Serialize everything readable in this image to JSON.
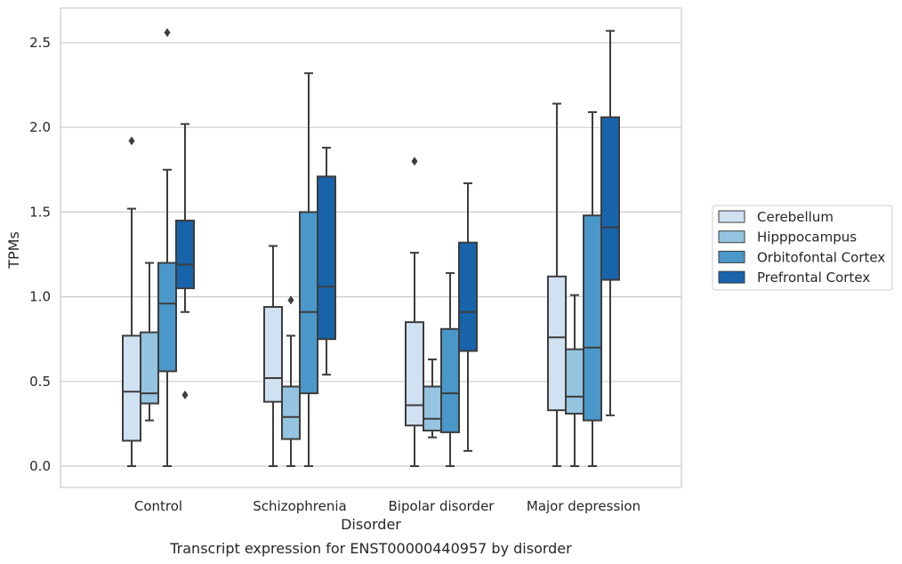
{
  "chart_data": {
    "type": "box",
    "xlabel": "Disorder",
    "ylabel": "TPMs",
    "caption": "Transcript expression for ENST00000440957 by disorder",
    "categories": [
      "Control",
      "Schizophrenia",
      "Bipolar disorder",
      "Major depression"
    ],
    "ylim": [
      -0.12,
      2.7
    ],
    "yticks": [
      "0.0",
      "0.5",
      "1.0",
      "1.5",
      "2.0",
      "2.5"
    ],
    "ytick_values": [
      0.0,
      0.5,
      1.0,
      1.5,
      2.0,
      2.5
    ],
    "grid": "horizontal",
    "legend_position": "right",
    "series": [
      {
        "name": "Cerebellum",
        "color": "#d0e1f2",
        "boxes": [
          {
            "whislo": 0.0,
            "q1": 0.15,
            "med": 0.44,
            "q3": 0.77,
            "whishi": 1.52,
            "fliers": [
              1.92
            ]
          },
          {
            "whislo": 0.0,
            "q1": 0.38,
            "med": 0.52,
            "q3": 0.94,
            "whishi": 1.3,
            "fliers": []
          },
          {
            "whislo": 0.0,
            "q1": 0.24,
            "med": 0.36,
            "q3": 0.85,
            "whishi": 1.26,
            "fliers": [
              1.8
            ]
          },
          {
            "whislo": 0.0,
            "q1": 0.33,
            "med": 0.76,
            "q3": 1.12,
            "whishi": 2.14,
            "fliers": []
          }
        ]
      },
      {
        "name": "Hipppocampus",
        "color": "#94c4df",
        "boxes": [
          {
            "whislo": 0.27,
            "q1": 0.37,
            "med": 0.43,
            "q3": 0.79,
            "whishi": 1.2,
            "fliers": []
          },
          {
            "whislo": 0.0,
            "q1": 0.16,
            "med": 0.29,
            "q3": 0.47,
            "whishi": 0.77,
            "fliers": [
              0.98
            ]
          },
          {
            "whislo": 0.17,
            "q1": 0.21,
            "med": 0.28,
            "q3": 0.47,
            "whishi": 0.63,
            "fliers": []
          },
          {
            "whislo": 0.0,
            "q1": 0.31,
            "med": 0.41,
            "q3": 0.69,
            "whishi": 1.01,
            "fliers": []
          }
        ]
      },
      {
        "name": "Orbitofontal Cortex",
        "color": "#4a98c9",
        "boxes": [
          {
            "whislo": 0.0,
            "q1": 0.56,
            "med": 0.96,
            "q3": 1.2,
            "whishi": 1.75,
            "fliers": [
              2.56
            ]
          },
          {
            "whislo": 0.0,
            "q1": 0.43,
            "med": 0.91,
            "q3": 1.5,
            "whishi": 2.32,
            "fliers": []
          },
          {
            "whislo": 0.0,
            "q1": 0.2,
            "med": 0.43,
            "q3": 0.81,
            "whishi": 1.14,
            "fliers": []
          },
          {
            "whislo": 0.0,
            "q1": 0.27,
            "med": 0.7,
            "q3": 1.48,
            "whishi": 2.09,
            "fliers": []
          }
        ]
      },
      {
        "name": "Prefrontal Cortex",
        "color": "#1764ab",
        "boxes": [
          {
            "whislo": 0.91,
            "q1": 1.05,
            "med": 1.19,
            "q3": 1.45,
            "whishi": 2.02,
            "fliers": [
              0.42
            ]
          },
          {
            "whislo": 0.54,
            "q1": 0.75,
            "med": 1.06,
            "q3": 1.71,
            "whishi": 1.88,
            "fliers": []
          },
          {
            "whislo": 0.09,
            "q1": 0.68,
            "med": 0.91,
            "q3": 1.32,
            "whishi": 1.67,
            "fliers": []
          },
          {
            "whislo": 0.3,
            "q1": 1.1,
            "med": 1.41,
            "q3": 2.06,
            "whishi": 2.57,
            "fliers": []
          }
        ]
      }
    ]
  }
}
